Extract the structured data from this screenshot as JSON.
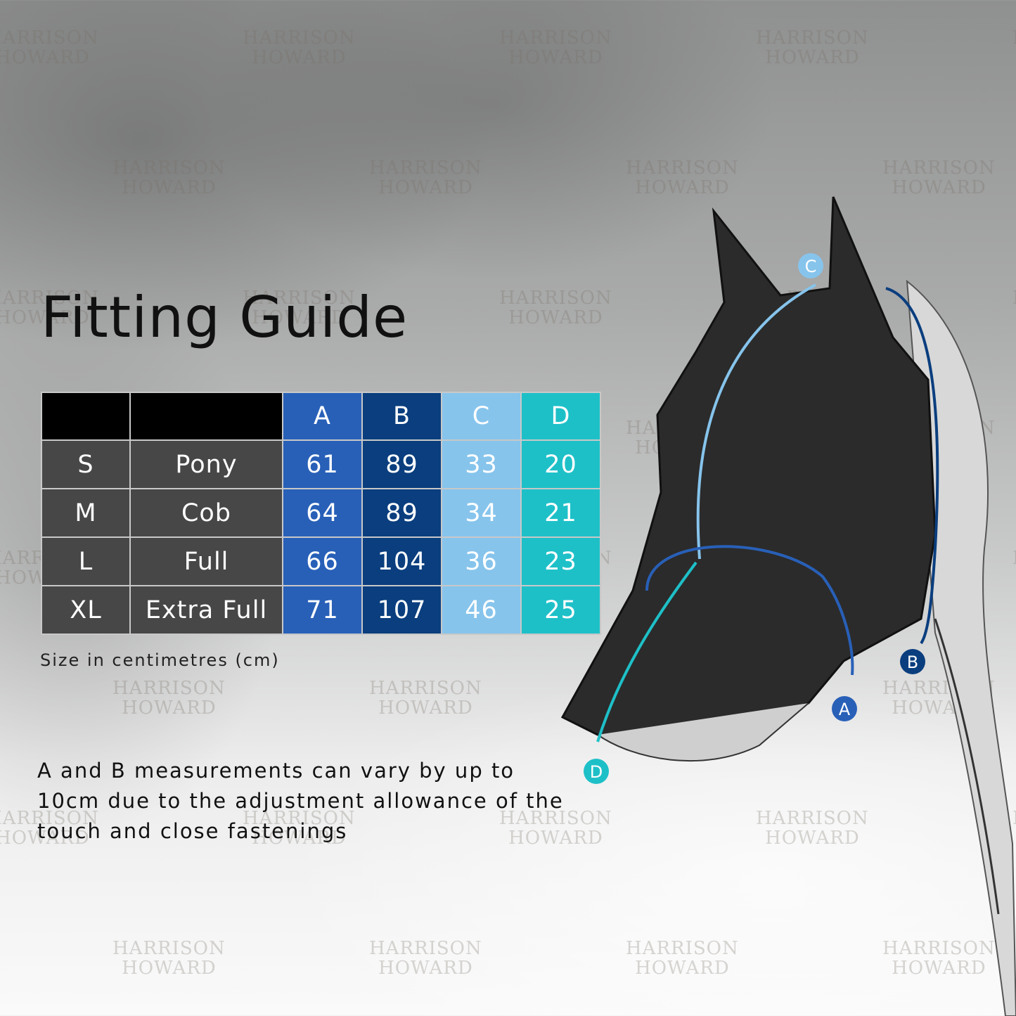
{
  "title": "Fitting Guide",
  "watermark": "HARRISON HOWARD",
  "table": {
    "headers": [
      "",
      "",
      "A",
      "B",
      "C",
      "D"
    ],
    "rows": [
      [
        "S",
        "Pony",
        "61",
        "89",
        "33",
        "20"
      ],
      [
        "M",
        "Cob",
        "64",
        "89",
        "34",
        "21"
      ],
      [
        "L",
        "Full",
        "66",
        "104",
        "36",
        "23"
      ],
      [
        "XL",
        "Extra Full",
        "71",
        "107",
        "46",
        "25"
      ]
    ]
  },
  "note": "Size in centimetres (cm)",
  "description": [
    "A and B measurements can vary by up to",
    "10cm due to the adjustment allowance of the",
    "touch and close fastenings"
  ],
  "diagram": {
    "labels": [
      "A",
      "B",
      "C",
      "D"
    ]
  },
  "colors": {
    "A": "#2860b8",
    "B": "#0a3e7e",
    "C": "#86c4ec",
    "D": "#1ec0c8",
    "label_bg": "#474747"
  }
}
